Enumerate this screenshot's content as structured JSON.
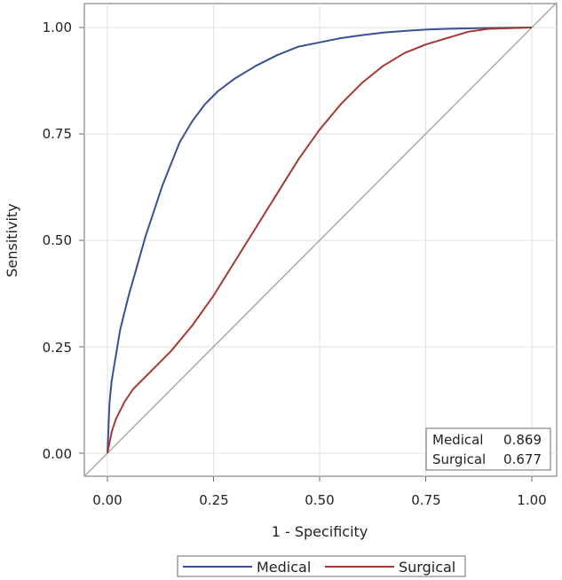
{
  "chart_data": {
    "type": "line",
    "title": "",
    "xlabel": "1 - Specificity",
    "ylabel": "Sensitivity",
    "xlim": [
      0,
      1
    ],
    "ylim": [
      0,
      1
    ],
    "x_ticks": [
      "0.00",
      "0.25",
      "0.50",
      "0.75",
      "1.00"
    ],
    "y_ticks": [
      "0.00",
      "0.25",
      "0.50",
      "0.75",
      "1.00"
    ],
    "grid": true,
    "legend_position": "bottom",
    "reference_line": {
      "name": "chance-diagonal",
      "color": "#a0a0a0",
      "points": [
        [
          0,
          0
        ],
        [
          1,
          1
        ]
      ]
    },
    "series": [
      {
        "name": "Medical",
        "auc": "0.869",
        "color": "#3b4f93",
        "points": [
          [
            0,
            0
          ],
          [
            0.005,
            0.12
          ],
          [
            0.01,
            0.17
          ],
          [
            0.02,
            0.23
          ],
          [
            0.03,
            0.29
          ],
          [
            0.05,
            0.37
          ],
          [
            0.07,
            0.44
          ],
          [
            0.09,
            0.51
          ],
          [
            0.11,
            0.57
          ],
          [
            0.13,
            0.63
          ],
          [
            0.15,
            0.68
          ],
          [
            0.17,
            0.73
          ],
          [
            0.2,
            0.78
          ],
          [
            0.23,
            0.82
          ],
          [
            0.26,
            0.85
          ],
          [
            0.3,
            0.88
          ],
          [
            0.35,
            0.91
          ],
          [
            0.4,
            0.935
          ],
          [
            0.45,
            0.955
          ],
          [
            0.5,
            0.965
          ],
          [
            0.55,
            0.975
          ],
          [
            0.6,
            0.982
          ],
          [
            0.65,
            0.988
          ],
          [
            0.7,
            0.992
          ],
          [
            0.75,
            0.995
          ],
          [
            0.8,
            0.997
          ],
          [
            0.9,
            0.999
          ],
          [
            1,
            1
          ]
        ]
      },
      {
        "name": "Surgical",
        "auc": "0.677",
        "color": "#a8382f",
        "points": [
          [
            0,
            0
          ],
          [
            0.01,
            0.05
          ],
          [
            0.02,
            0.08
          ],
          [
            0.04,
            0.12
          ],
          [
            0.06,
            0.15
          ],
          [
            0.08,
            0.17
          ],
          [
            0.1,
            0.19
          ],
          [
            0.15,
            0.24
          ],
          [
            0.2,
            0.3
          ],
          [
            0.25,
            0.37
          ],
          [
            0.3,
            0.45
          ],
          [
            0.35,
            0.53
          ],
          [
            0.4,
            0.61
          ],
          [
            0.45,
            0.69
          ],
          [
            0.5,
            0.76
          ],
          [
            0.55,
            0.82
          ],
          [
            0.6,
            0.87
          ],
          [
            0.65,
            0.91
          ],
          [
            0.7,
            0.94
          ],
          [
            0.75,
            0.96
          ],
          [
            0.8,
            0.975
          ],
          [
            0.85,
            0.99
          ],
          [
            0.9,
            0.997
          ],
          [
            1,
            1
          ]
        ]
      }
    ],
    "auc_table": {
      "rows": [
        {
          "label": "Medical",
          "value": "0.869"
        },
        {
          "label": "Surgical",
          "value": "0.677"
        }
      ]
    }
  }
}
